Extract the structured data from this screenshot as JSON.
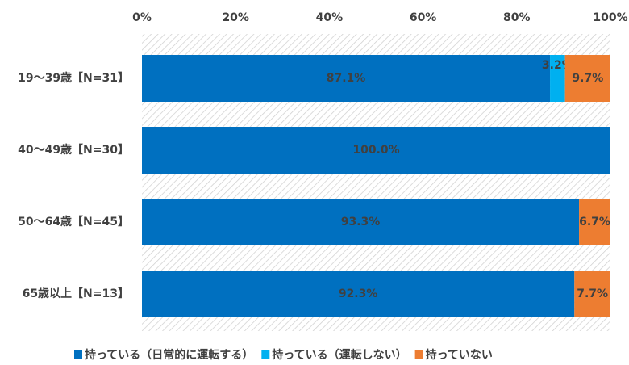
{
  "chart_data": {
    "type": "stacked-bar-horizontal",
    "categories": [
      "19〜39歳【N=31】",
      "40〜49歳【N=30】",
      "50〜64歳【N=45】",
      "65歳以上【N=13】"
    ],
    "series": [
      {
        "name": "持っている（日常的に運転する）",
        "color": "#0070c0",
        "values": [
          87.1,
          100,
          93.3,
          92.3
        ],
        "value_labels": [
          "87.1%",
          "100.0%",
          "93.3%",
          "92.3%"
        ]
      },
      {
        "name": "持っている（運転しない）",
        "color": "#00b0f0",
        "values": [
          3.2,
          0,
          0,
          0
        ],
        "value_labels": [
          "3.2%",
          null,
          null,
          null
        ]
      },
      {
        "name": "持っていない",
        "color": "#ed7d31",
        "values": [
          9.7,
          0,
          6.7,
          7.7
        ],
        "value_labels": [
          "9.7%",
          null,
          "6.7%",
          "7.7%"
        ]
      }
    ],
    "xlim": [
      0,
      100
    ],
    "xticks": [
      {
        "value": 0,
        "label": "0%"
      },
      {
        "value": 20,
        "label": "20%"
      },
      {
        "value": 40,
        "label": "40%"
      },
      {
        "value": 60,
        "label": "60%"
      },
      {
        "value": 80,
        "label": "80%"
      },
      {
        "value": 100,
        "label": "100%"
      }
    ],
    "legend": "bottom"
  }
}
